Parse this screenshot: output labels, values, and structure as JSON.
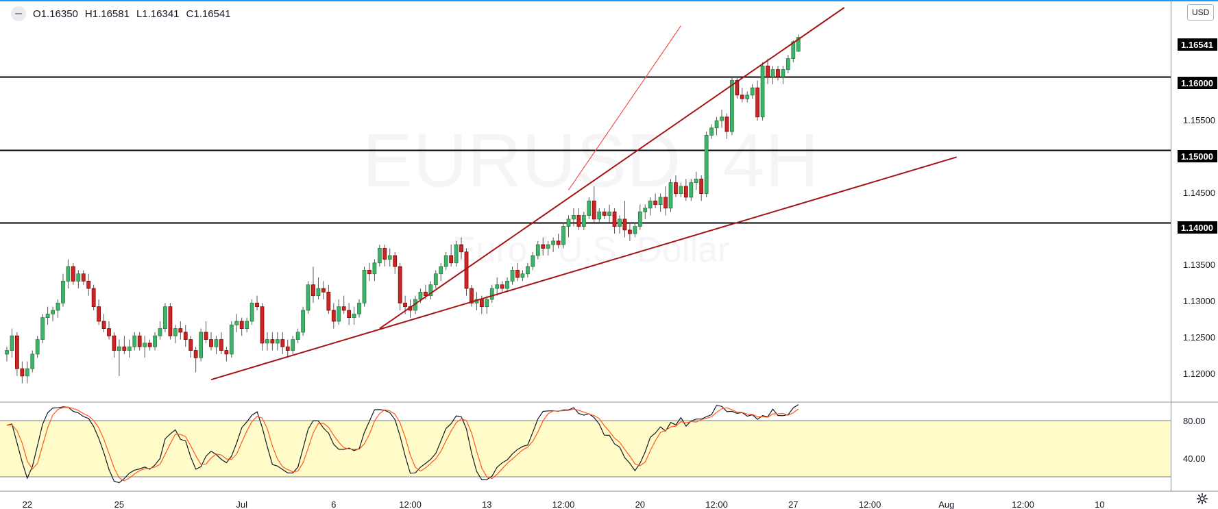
{
  "ohlc": {
    "open": "O1.16350",
    "high": "H1.16581",
    "low": "L1.16341",
    "close": "C1.16541"
  },
  "currency_button": "USD",
  "watermark": {
    "symbol": "EURUSD, 4H",
    "description": "Euro / U.S. Dollar"
  },
  "price_axis": {
    "labels": [
      "1.15500",
      "1.14500",
      "1.13500",
      "1.13000",
      "1.12500",
      "1.12000"
    ],
    "level_badges": [
      "1.16000",
      "1.15000",
      "1.14000"
    ],
    "last_price": "1.16541"
  },
  "oscillator_axis": {
    "labels": [
      "80.00",
      "40.00"
    ]
  },
  "time_axis": {
    "labels": [
      "22",
      "25",
      "Jul",
      "6",
      "12:00",
      "13",
      "12:00",
      "20",
      "12:00",
      "27",
      "12:00",
      "Aug",
      "12:00",
      "10"
    ]
  },
  "colors": {
    "up_candle": "#26a69a",
    "up_candle_fill": "#3cb371",
    "down_candle": "#c62828",
    "trendline": "#a31515",
    "oscillator_band": "#fffcc9",
    "level_line": "#000000"
  },
  "chart_data": {
    "type": "candlestick",
    "symbol": "EURUSD",
    "timeframe": "4H",
    "y_range": [
      1.1155,
      1.1695
    ],
    "horizontal_levels": [
      1.16,
      1.15,
      1.14
    ],
    "oscillator": {
      "type": "stochastic",
      "range": [
        0,
        100
      ],
      "band": [
        20,
        80
      ],
      "lines": [
        "%K",
        "%D"
      ]
    },
    "x_ticks": [
      {
        "label": "22",
        "index": 4
      },
      {
        "label": "25",
        "index": 22
      },
      {
        "label": "Jul",
        "index": 46
      },
      {
        "label": "6",
        "index": 64
      },
      {
        "label": "12:00",
        "index": 79
      },
      {
        "label": "13",
        "index": 94
      },
      {
        "label": "12:00",
        "index": 109
      },
      {
        "label": "20",
        "index": 124
      },
      {
        "label": "12:00",
        "index": 139
      },
      {
        "label": "27",
        "index": 154
      },
      {
        "label": "12:00",
        "index": 169
      },
      {
        "label": "Aug",
        "index": 184
      },
      {
        "label": "12:00",
        "index": 199
      },
      {
        "label": "10",
        "index": 214
      }
    ],
    "candles_ohlc": [
      [
        1.122,
        1.123,
        1.121,
        1.1225
      ],
      [
        1.1225,
        1.1255,
        1.1215,
        1.1245
      ],
      [
        1.1245,
        1.125,
        1.119,
        1.12
      ],
      [
        1.12,
        1.121,
        1.118,
        1.119
      ],
      [
        1.119,
        1.121,
        1.118,
        1.12
      ],
      [
        1.12,
        1.1225,
        1.1195,
        1.122
      ],
      [
        1.122,
        1.1245,
        1.1215,
        1.124
      ],
      [
        1.124,
        1.1275,
        1.1235,
        1.127
      ],
      [
        1.127,
        1.1285,
        1.126,
        1.1275
      ],
      [
        1.1275,
        1.1285,
        1.1265,
        1.128
      ],
      [
        1.128,
        1.1295,
        1.127,
        1.129
      ],
      [
        1.129,
        1.133,
        1.1285,
        1.132
      ],
      [
        1.132,
        1.135,
        1.131,
        1.134
      ],
      [
        1.134,
        1.1345,
        1.1315,
        1.132
      ],
      [
        1.132,
        1.1335,
        1.131,
        1.133
      ],
      [
        1.133,
        1.1335,
        1.1315,
        1.132
      ],
      [
        1.132,
        1.133,
        1.13,
        1.131
      ],
      [
        1.131,
        1.1315,
        1.128,
        1.1285
      ],
      [
        1.1285,
        1.1295,
        1.126,
        1.1265
      ],
      [
        1.1265,
        1.1275,
        1.125,
        1.1255
      ],
      [
        1.1255,
        1.1265,
        1.124,
        1.1245
      ],
      [
        1.1245,
        1.125,
        1.1215,
        1.1225
      ],
      [
        1.1225,
        1.124,
        1.119,
        1.123
      ],
      [
        1.123,
        1.1245,
        1.122,
        1.1225
      ],
      [
        1.1225,
        1.124,
        1.1215,
        1.123
      ],
      [
        1.123,
        1.125,
        1.1225,
        1.1245
      ],
      [
        1.1245,
        1.125,
        1.1225,
        1.123
      ],
      [
        1.123,
        1.1245,
        1.1215,
        1.1235
      ],
      [
        1.1235,
        1.124,
        1.1225,
        1.123
      ],
      [
        1.123,
        1.125,
        1.1225,
        1.1245
      ],
      [
        1.1245,
        1.1265,
        1.124,
        1.1255
      ],
      [
        1.1255,
        1.129,
        1.125,
        1.1285
      ],
      [
        1.1285,
        1.129,
        1.124,
        1.1245
      ],
      [
        1.1245,
        1.126,
        1.1235,
        1.1255
      ],
      [
        1.1255,
        1.1265,
        1.124,
        1.125
      ],
      [
        1.125,
        1.126,
        1.123,
        1.124
      ],
      [
        1.124,
        1.1245,
        1.1215,
        1.1225
      ],
      [
        1.1225,
        1.123,
        1.1195,
        1.1215
      ],
      [
        1.1215,
        1.1255,
        1.121,
        1.125
      ],
      [
        1.125,
        1.1265,
        1.1235,
        1.124
      ],
      [
        1.124,
        1.125,
        1.1225,
        1.123
      ],
      [
        1.123,
        1.1245,
        1.122,
        1.124
      ],
      [
        1.124,
        1.125,
        1.122,
        1.1225
      ],
      [
        1.1225,
        1.123,
        1.121,
        1.122
      ],
      [
        1.122,
        1.1265,
        1.1215,
        1.126
      ],
      [
        1.126,
        1.1275,
        1.125,
        1.1265
      ],
      [
        1.1265,
        1.127,
        1.1245,
        1.1255
      ],
      [
        1.1255,
        1.127,
        1.125,
        1.1265
      ],
      [
        1.1265,
        1.1295,
        1.126,
        1.129
      ],
      [
        1.129,
        1.13,
        1.128,
        1.1285
      ],
      [
        1.1285,
        1.129,
        1.1225,
        1.1235
      ],
      [
        1.1235,
        1.125,
        1.1225,
        1.124
      ],
      [
        1.124,
        1.125,
        1.1225,
        1.1235
      ],
      [
        1.1235,
        1.125,
        1.1225,
        1.124
      ],
      [
        1.124,
        1.125,
        1.122,
        1.123
      ],
      [
        1.123,
        1.124,
        1.1215,
        1.1225
      ],
      [
        1.1225,
        1.1245,
        1.122,
        1.124
      ],
      [
        1.124,
        1.1255,
        1.1235,
        1.125
      ],
      [
        1.125,
        1.1285,
        1.1245,
        1.128
      ],
      [
        1.128,
        1.132,
        1.1275,
        1.1315
      ],
      [
        1.1315,
        1.134,
        1.129,
        1.13
      ],
      [
        1.13,
        1.1325,
        1.1295,
        1.131
      ],
      [
        1.131,
        1.132,
        1.1295,
        1.1305
      ],
      [
        1.1305,
        1.1315,
        1.1275,
        1.128
      ],
      [
        1.128,
        1.129,
        1.1255,
        1.1265
      ],
      [
        1.1265,
        1.1295,
        1.126,
        1.1285
      ],
      [
        1.1285,
        1.13,
        1.1275,
        1.128
      ],
      [
        1.128,
        1.129,
        1.126,
        1.127
      ],
      [
        1.127,
        1.1285,
        1.126,
        1.1275
      ],
      [
        1.1275,
        1.1295,
        1.127,
        1.129
      ],
      [
        1.129,
        1.134,
        1.1285,
        1.1335
      ],
      [
        1.1335,
        1.1345,
        1.132,
        1.133
      ],
      [
        1.133,
        1.135,
        1.132,
        1.1345
      ],
      [
        1.1345,
        1.137,
        1.134,
        1.1365
      ],
      [
        1.1365,
        1.137,
        1.134,
        1.135
      ],
      [
        1.135,
        1.1365,
        1.134,
        1.1355
      ],
      [
        1.1355,
        1.136,
        1.133,
        1.134
      ],
      [
        1.134,
        1.1345,
        1.128,
        1.129
      ],
      [
        1.129,
        1.13,
        1.1275,
        1.1285
      ],
      [
        1.1285,
        1.1295,
        1.127,
        1.128
      ],
      [
        1.128,
        1.13,
        1.1275,
        1.1295
      ],
      [
        1.1295,
        1.131,
        1.129,
        1.1305
      ],
      [
        1.1305,
        1.1315,
        1.1295,
        1.13
      ],
      [
        1.13,
        1.132,
        1.1295,
        1.1315
      ],
      [
        1.1315,
        1.1335,
        1.131,
        1.133
      ],
      [
        1.133,
        1.1345,
        1.132,
        1.134
      ],
      [
        1.134,
        1.136,
        1.1335,
        1.1355
      ],
      [
        1.1355,
        1.137,
        1.134,
        1.1345
      ],
      [
        1.1345,
        1.1375,
        1.134,
        1.137
      ],
      [
        1.137,
        1.138,
        1.135,
        1.136
      ],
      [
        1.136,
        1.1365,
        1.13,
        1.131
      ],
      [
        1.131,
        1.1315,
        1.1285,
        1.129
      ],
      [
        1.129,
        1.1305,
        1.128,
        1.1295
      ],
      [
        1.1295,
        1.13,
        1.1275,
        1.1285
      ],
      [
        1.1285,
        1.13,
        1.1275,
        1.1295
      ],
      [
        1.1295,
        1.1315,
        1.129,
        1.131
      ],
      [
        1.131,
        1.1325,
        1.13,
        1.1315
      ],
      [
        1.1315,
        1.132,
        1.1305,
        1.131
      ],
      [
        1.131,
        1.1325,
        1.1305,
        1.132
      ],
      [
        1.132,
        1.134,
        1.1315,
        1.1335
      ],
      [
        1.1335,
        1.1345,
        1.132,
        1.1325
      ],
      [
        1.1325,
        1.1335,
        1.132,
        1.133
      ],
      [
        1.133,
        1.1345,
        1.1325,
        1.134
      ],
      [
        1.134,
        1.136,
        1.1335,
        1.1355
      ],
      [
        1.1355,
        1.1375,
        1.135,
        1.137
      ],
      [
        1.137,
        1.138,
        1.1355,
        1.1365
      ],
      [
        1.1365,
        1.1375,
        1.1355,
        1.137
      ],
      [
        1.137,
        1.138,
        1.136,
        1.1375
      ],
      [
        1.1375,
        1.1385,
        1.1365,
        1.137
      ],
      [
        1.137,
        1.14,
        1.1365,
        1.1395
      ],
      [
        1.1395,
        1.141,
        1.138,
        1.1405
      ],
      [
        1.1405,
        1.142,
        1.1395,
        1.141
      ],
      [
        1.141,
        1.142,
        1.139,
        1.1395
      ],
      [
        1.1395,
        1.1415,
        1.139,
        1.141
      ],
      [
        1.141,
        1.1435,
        1.1405,
        1.143
      ],
      [
        1.143,
        1.145,
        1.14,
        1.1405
      ],
      [
        1.1405,
        1.142,
        1.14,
        1.1415
      ],
      [
        1.1415,
        1.142,
        1.1405,
        1.141
      ],
      [
        1.141,
        1.1425,
        1.14,
        1.1415
      ],
      [
        1.1415,
        1.142,
        1.1385,
        1.1395
      ],
      [
        1.1395,
        1.141,
        1.1385,
        1.1405
      ],
      [
        1.1405,
        1.143,
        1.138,
        1.139
      ],
      [
        1.139,
        1.14,
        1.1375,
        1.1385
      ],
      [
        1.1385,
        1.14,
        1.138,
        1.1395
      ],
      [
        1.1395,
        1.1425,
        1.139,
        1.1415
      ],
      [
        1.1415,
        1.1425,
        1.1405,
        1.142
      ],
      [
        1.142,
        1.1435,
        1.141,
        1.143
      ],
      [
        1.143,
        1.144,
        1.142,
        1.1425
      ],
      [
        1.1425,
        1.144,
        1.1415,
        1.1435
      ],
      [
        1.1435,
        1.145,
        1.141,
        1.142
      ],
      [
        1.142,
        1.146,
        1.1415,
        1.1455
      ],
      [
        1.1455,
        1.1465,
        1.1435,
        1.144
      ],
      [
        1.144,
        1.1455,
        1.1435,
        1.145
      ],
      [
        1.145,
        1.146,
        1.143,
        1.1435
      ],
      [
        1.1435,
        1.146,
        1.143,
        1.1455
      ],
      [
        1.1455,
        1.147,
        1.1445,
        1.146
      ],
      [
        1.146,
        1.1465,
        1.143,
        1.144
      ],
      [
        1.144,
        1.1525,
        1.1435,
        1.152
      ],
      [
        1.152,
        1.1535,
        1.1515,
        1.153
      ],
      [
        1.153,
        1.1545,
        1.152,
        1.154
      ],
      [
        1.154,
        1.1555,
        1.153,
        1.1545
      ],
      [
        1.1545,
        1.155,
        1.1515,
        1.1525
      ],
      [
        1.1525,
        1.16,
        1.152,
        1.1595
      ],
      [
        1.1595,
        1.16,
        1.157,
        1.1575
      ],
      [
        1.1575,
        1.1585,
        1.1565,
        1.157
      ],
      [
        1.157,
        1.158,
        1.1565,
        1.1575
      ],
      [
        1.1575,
        1.159,
        1.157,
        1.1585
      ],
      [
        1.1585,
        1.1595,
        1.154,
        1.1545
      ],
      [
        1.1545,
        1.162,
        1.154,
        1.1615
      ],
      [
        1.1615,
        1.1625,
        1.159,
        1.16
      ],
      [
        1.16,
        1.1615,
        1.159,
        1.161
      ],
      [
        1.161,
        1.1615,
        1.1595,
        1.16
      ],
      [
        1.16,
        1.1615,
        1.159,
        1.161
      ],
      [
        1.161,
        1.163,
        1.1605,
        1.1625
      ],
      [
        1.1625,
        1.165,
        1.162,
        1.1648
      ],
      [
        1.1635,
        1.1658,
        1.1634,
        1.1654
      ]
    ],
    "trendlines": [
      {
        "name": "long-trendline",
        "from": [
          40,
          1.1185
        ],
        "to": [
          186,
          1.149
        ]
      },
      {
        "name": "mid-trendline",
        "from": [
          73,
          1.1255
        ],
        "to": [
          164,
          1.1695
        ]
      },
      {
        "name": "steep-trendline",
        "from": [
          110,
          1.1445
        ],
        "to": [
          132,
          1.167
        ]
      }
    ]
  }
}
